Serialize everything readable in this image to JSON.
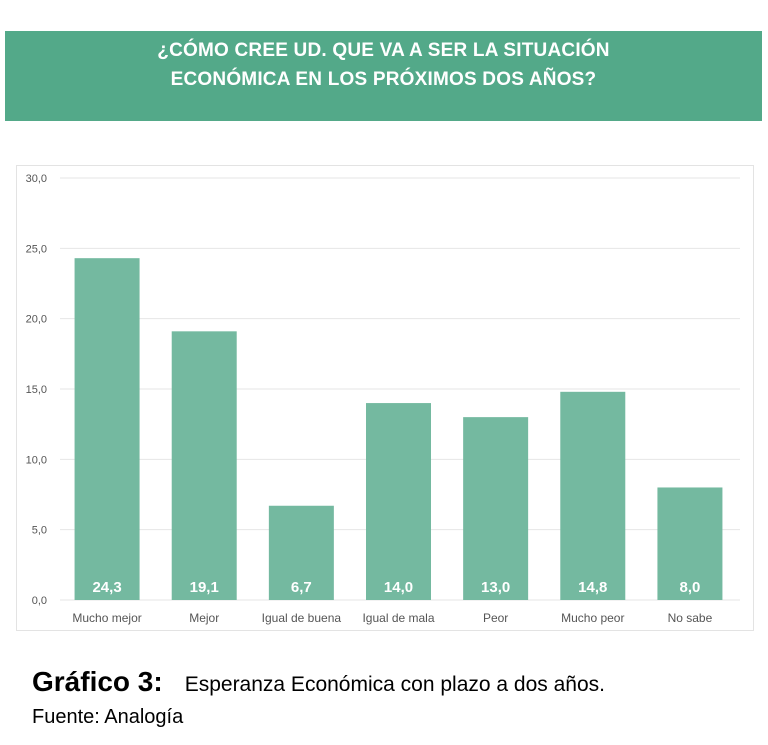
{
  "header": {
    "title_line1": "¿CÓMO CREE UD. QUE VA A SER LA SITUACIÓN",
    "title_line2": "ECONÓMICA EN LOS PRÓXIMOS DOS AÑOS?"
  },
  "chart_data": {
    "type": "bar",
    "title": "¿CÓMO CREE UD. QUE VA A SER LA SITUACIÓN ECONÓMICA EN LOS PRÓXIMOS DOS AÑOS?",
    "categories": [
      "Mucho mejor",
      "Mejor",
      "Igual de buena",
      "Igual de mala",
      "Peor",
      "Mucho peor",
      "No sabe"
    ],
    "values": [
      24.3,
      19.1,
      6.7,
      14.0,
      13.0,
      14.8,
      8.0
    ],
    "value_labels": [
      "24,3",
      "19,1",
      "6,7",
      "14,0",
      "13,0",
      "14,8",
      "8,0"
    ],
    "yticks": [
      "0,0",
      "5,0",
      "10,0",
      "15,0",
      "20,0",
      "25,0",
      "30,0"
    ],
    "ylim": [
      0,
      30
    ],
    "xlabel": "",
    "ylabel": "",
    "grid": true,
    "bar_color": "#74b9a0",
    "label_color": "#ffffff"
  },
  "caption": {
    "label": "Gráfico 3:",
    "text": "Esperanza Económica con plazo a dos años.",
    "source": "Fuente: Analogía"
  },
  "colors": {
    "header_bg": "#53a989",
    "bar": "#74b9a0",
    "grid": "#e6e6e6",
    "tick_text": "#555555"
  }
}
